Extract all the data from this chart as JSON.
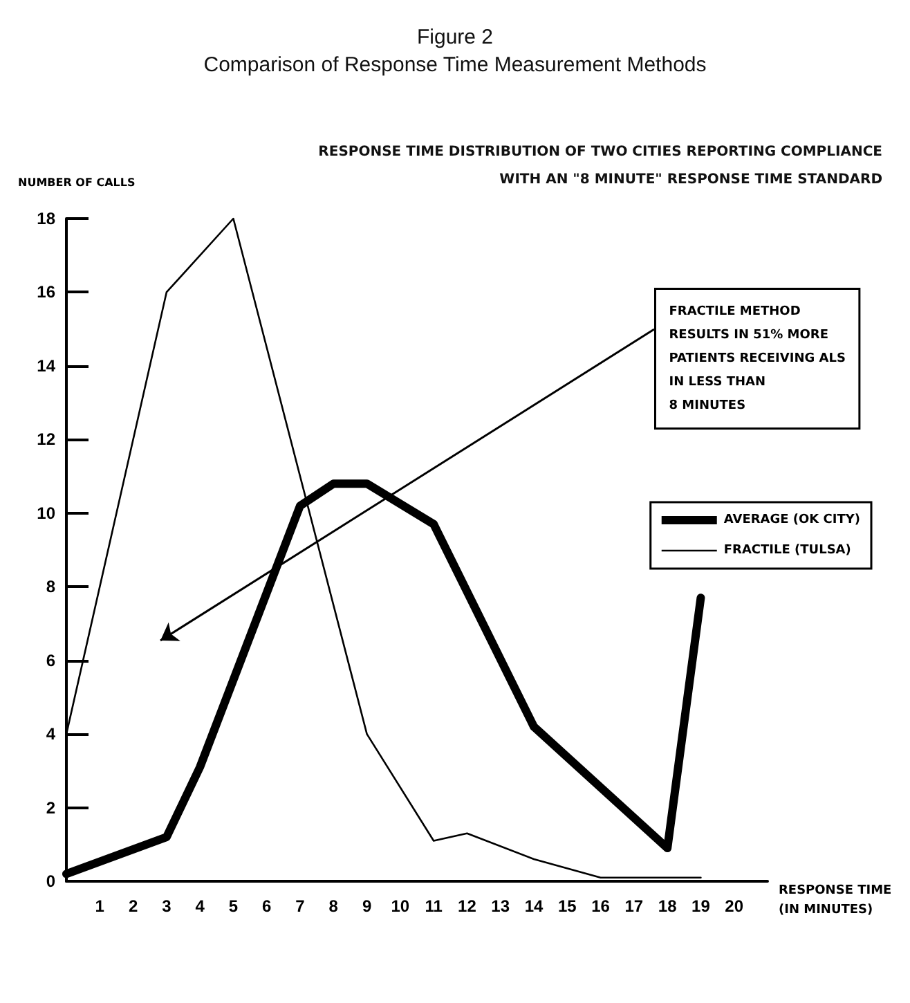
{
  "chart_data": {
    "type": "line",
    "title": "Figure 2\nComparison of Response Time Measurement Methods",
    "subtitle": "RESPONSE TIME DISTRIBUTION OF TWO CITIES REPORTING COMPLIANCE\nWITH AN \"8 MINUTE\" RESPONSE TIME STANDARD",
    "xlabel": "RESPONSE TIME\n(IN MINUTES)",
    "ylabel": "NUMBER OF CALLS",
    "series": [
      {
        "name": "AVERAGE (OK CITY)",
        "color": "#000000",
        "x": [
          0,
          3,
          4,
          7,
          8,
          9,
          11,
          14,
          18,
          19
        ],
        "values": [
          0.2,
          1.2,
          3.1,
          10.2,
          10.8,
          10.8,
          9.7,
          4.2,
          0.9,
          7.7
        ]
      },
      {
        "name": "FRACTILE (TULSA)",
        "color": "#000000",
        "x": [
          0,
          3,
          5,
          9,
          11,
          12,
          14,
          16,
          19
        ],
        "values": [
          4,
          16,
          18,
          4,
          1.1,
          1.3,
          0.6,
          0.1,
          0.1
        ]
      }
    ],
    "xlim": [
      0,
      21
    ],
    "xticks": [
      1,
      2,
      3,
      4,
      5,
      6,
      7,
      8,
      9,
      10,
      11,
      12,
      13,
      14,
      15,
      16,
      17,
      18,
      19,
      20
    ],
    "ylim": [
      0,
      18
    ],
    "yticks": [
      0,
      2,
      4,
      6,
      8,
      10,
      12,
      14,
      16,
      18
    ],
    "grid": false,
    "legend": "right",
    "marker": "none",
    "annotations": [
      "FRACTILE METHOD\nRESULTS IN 51% MORE\nPATIENTS RECEIVING ALS\nIN LESS THAN\n8 MINUTES"
    ]
  }
}
